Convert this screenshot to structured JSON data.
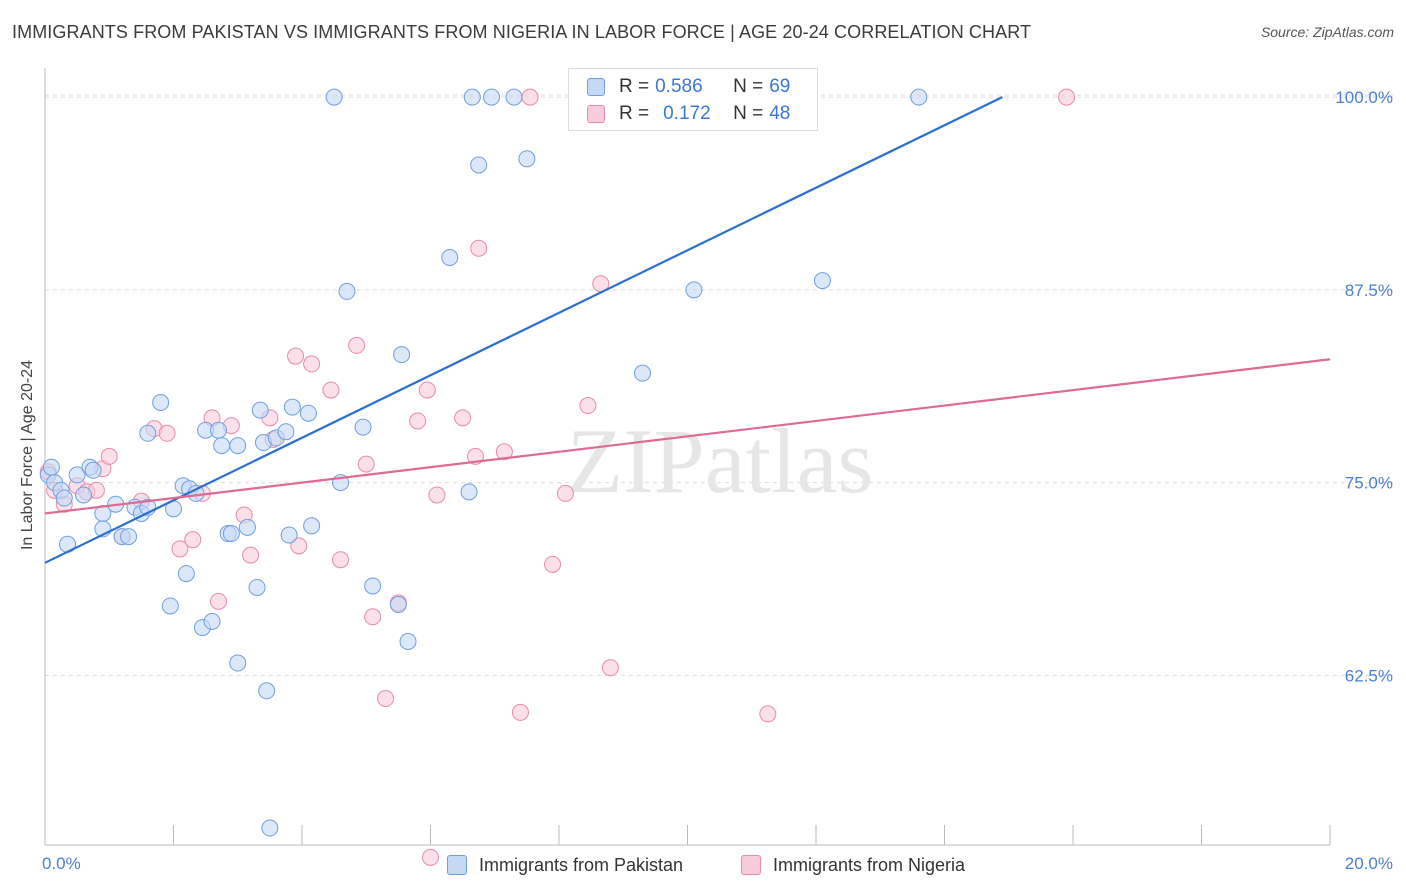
{
  "chart_data": {
    "type": "scatter",
    "title": "IMMIGRANTS FROM PAKISTAN VS IMMIGRANTS FROM NIGERIA IN LABOR FORCE | AGE 20-24 CORRELATION CHART",
    "source": "Source: ZipAtlas.com",
    "ylabel": "In Labor Force | Age 20-24",
    "xlabel": "",
    "xlim": [
      0,
      20
    ],
    "ylim": [
      51.5,
      101.5
    ],
    "x_tick_labels": [
      "0.0%",
      "20.0%"
    ],
    "y_ticks": [
      62.5,
      75.0,
      87.5,
      100.0
    ],
    "y_tick_labels": [
      "62.5%",
      "75.0%",
      "87.5%",
      "100.0%"
    ],
    "watermark": "ZIPatlas",
    "legend_top": [
      {
        "r_label": "R = ",
        "r_value": "0.586",
        "n_label": "N = ",
        "n_value": "69"
      },
      {
        "r_label": "R = ",
        "r_value": "0.172",
        "n_label": "N = ",
        "n_value": "48"
      }
    ],
    "series": [
      {
        "name": "Immigrants from Pakistan",
        "color": "#6f9fe0",
        "fill": "#c5d9f5",
        "trend_color": "#2a6fd0",
        "trend": [
          [
            0.0,
            69.8
          ],
          [
            14.9,
            100.0
          ]
        ],
        "points": [
          [
            0.05,
            75.5
          ],
          [
            0.1,
            76.0
          ],
          [
            0.15,
            75.0
          ],
          [
            0.25,
            74.5
          ],
          [
            0.3,
            74.0
          ],
          [
            0.35,
            71.0
          ],
          [
            0.5,
            75.5
          ],
          [
            0.6,
            74.2
          ],
          [
            0.7,
            76.0
          ],
          [
            0.75,
            75.8
          ],
          [
            0.9,
            73.0
          ],
          [
            0.9,
            72.0
          ],
          [
            1.1,
            73.6
          ],
          [
            1.2,
            71.5
          ],
          [
            1.3,
            71.5
          ],
          [
            1.4,
            73.4
          ],
          [
            1.5,
            73.0
          ],
          [
            1.6,
            73.4
          ],
          [
            1.6,
            78.2
          ],
          [
            1.8,
            80.2
          ],
          [
            1.95,
            67.0
          ],
          [
            2.0,
            73.3
          ],
          [
            2.15,
            74.8
          ],
          [
            2.2,
            69.1
          ],
          [
            2.25,
            74.6
          ],
          [
            2.35,
            74.3
          ],
          [
            2.45,
            65.6
          ],
          [
            2.5,
            78.4
          ],
          [
            2.6,
            66.0
          ],
          [
            2.7,
            78.4
          ],
          [
            2.75,
            77.4
          ],
          [
            2.85,
            71.7
          ],
          [
            2.9,
            71.7
          ],
          [
            3.0,
            77.4
          ],
          [
            3.0,
            63.3
          ],
          [
            3.15,
            72.1
          ],
          [
            3.3,
            68.2
          ],
          [
            3.35,
            79.7
          ],
          [
            3.4,
            77.6
          ],
          [
            3.45,
            61.5
          ],
          [
            3.5,
            52.6
          ],
          [
            3.6,
            77.9
          ],
          [
            3.75,
            78.3
          ],
          [
            3.8,
            71.6
          ],
          [
            3.85,
            79.9
          ],
          [
            4.1,
            79.5
          ],
          [
            4.15,
            72.2
          ],
          [
            4.5,
            100.0
          ],
          [
            4.6,
            75.0
          ],
          [
            4.7,
            87.4
          ],
          [
            4.95,
            78.6
          ],
          [
            5.1,
            68.3
          ],
          [
            5.5,
            67.1
          ],
          [
            5.55,
            83.3
          ],
          [
            5.65,
            64.7
          ],
          [
            6.3,
            89.6
          ],
          [
            6.6,
            74.4
          ],
          [
            6.65,
            100.0
          ],
          [
            6.75,
            95.6
          ],
          [
            6.95,
            100.0
          ],
          [
            7.3,
            100.0
          ],
          [
            7.5,
            96.0
          ],
          [
            9.3,
            82.1
          ],
          [
            10.1,
            87.5
          ],
          [
            12.1,
            88.1
          ],
          [
            13.6,
            100.0
          ]
        ]
      },
      {
        "name": "Immigrants from Nigeria",
        "color": "#e88aab",
        "fill": "#f8cbdb",
        "trend_color": "#e06a95",
        "trend": [
          [
            0.0,
            73.0
          ],
          [
            20.0,
            83.0
          ]
        ],
        "points": [
          [
            0.05,
            75.7
          ],
          [
            0.15,
            74.5
          ],
          [
            0.3,
            73.6
          ],
          [
            0.5,
            74.8
          ],
          [
            0.65,
            74.4
          ],
          [
            0.8,
            74.5
          ],
          [
            0.9,
            75.9
          ],
          [
            1.0,
            76.7
          ],
          [
            1.2,
            71.5
          ],
          [
            1.5,
            73.8
          ],
          [
            1.7,
            78.5
          ],
          [
            1.9,
            78.2
          ],
          [
            2.1,
            70.7
          ],
          [
            2.3,
            71.3
          ],
          [
            2.45,
            74.3
          ],
          [
            2.6,
            79.2
          ],
          [
            2.7,
            67.3
          ],
          [
            2.9,
            78.7
          ],
          [
            3.1,
            72.9
          ],
          [
            3.2,
            70.3
          ],
          [
            3.5,
            79.2
          ],
          [
            3.55,
            77.8
          ],
          [
            3.9,
            83.2
          ],
          [
            3.95,
            70.9
          ],
          [
            4.15,
            82.7
          ],
          [
            4.45,
            81.0
          ],
          [
            4.6,
            70.0
          ],
          [
            4.85,
            83.9
          ],
          [
            5.0,
            76.2
          ],
          [
            5.1,
            66.3
          ],
          [
            5.3,
            61.0
          ],
          [
            5.5,
            67.2
          ],
          [
            5.8,
            79.0
          ],
          [
            5.95,
            81.0
          ],
          [
            6.0,
            50.7
          ],
          [
            6.1,
            74.2
          ],
          [
            6.5,
            79.2
          ],
          [
            6.7,
            76.7
          ],
          [
            6.75,
            90.2
          ],
          [
            7.15,
            77.0
          ],
          [
            7.4,
            60.1
          ],
          [
            7.55,
            100.0
          ],
          [
            7.9,
            69.7
          ],
          [
            8.1,
            74.3
          ],
          [
            8.45,
            80.0
          ],
          [
            8.65,
            87.9
          ],
          [
            8.8,
            63.0
          ],
          [
            11.25,
            60.0
          ],
          [
            15.9,
            100.0
          ]
        ]
      }
    ]
  }
}
